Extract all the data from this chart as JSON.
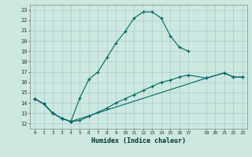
{
  "title": "",
  "xlabel": "Humidex (Indice chaleur)",
  "bg_color": "#cce8e0",
  "grid_color": "#aacccc",
  "line_color": "#006666",
  "xlim": [
    -0.5,
    23.5
  ],
  "ylim": [
    11.5,
    23.5
  ],
  "xticks": [
    0,
    1,
    2,
    3,
    4,
    5,
    6,
    7,
    8,
    9,
    10,
    11,
    12,
    13,
    14,
    15,
    16,
    17,
    19,
    20,
    21,
    22,
    23
  ],
  "yticks": [
    12,
    13,
    14,
    15,
    16,
    17,
    18,
    19,
    20,
    21,
    22,
    23
  ],
  "curve1_x": [
    0,
    1,
    2,
    3,
    4,
    5,
    6,
    7,
    8,
    9,
    10,
    11,
    12,
    13,
    14,
    15,
    16,
    17
  ],
  "curve1_y": [
    14.4,
    13.9,
    13.0,
    12.5,
    12.2,
    14.5,
    16.3,
    17.0,
    18.4,
    19.8,
    20.9,
    22.2,
    22.8,
    22.8,
    22.2,
    20.5,
    19.4,
    19.0
  ],
  "curve2_x": [
    0,
    1,
    2,
    3,
    4,
    5,
    6,
    7,
    8,
    9,
    10,
    11,
    12,
    13,
    14,
    15,
    16,
    17,
    19,
    21,
    22,
    23
  ],
  "curve2_y": [
    14.4,
    13.9,
    13.0,
    12.5,
    12.2,
    12.3,
    12.7,
    13.1,
    13.5,
    14.0,
    14.4,
    14.8,
    15.2,
    15.6,
    16.0,
    16.2,
    16.5,
    16.7,
    16.4,
    16.9,
    16.5,
    16.5
  ],
  "curve3_x": [
    0,
    1,
    2,
    3,
    4,
    19,
    21,
    22,
    23
  ],
  "curve3_y": [
    14.4,
    13.9,
    13.0,
    12.5,
    12.2,
    16.4,
    16.9,
    16.5,
    16.5
  ]
}
